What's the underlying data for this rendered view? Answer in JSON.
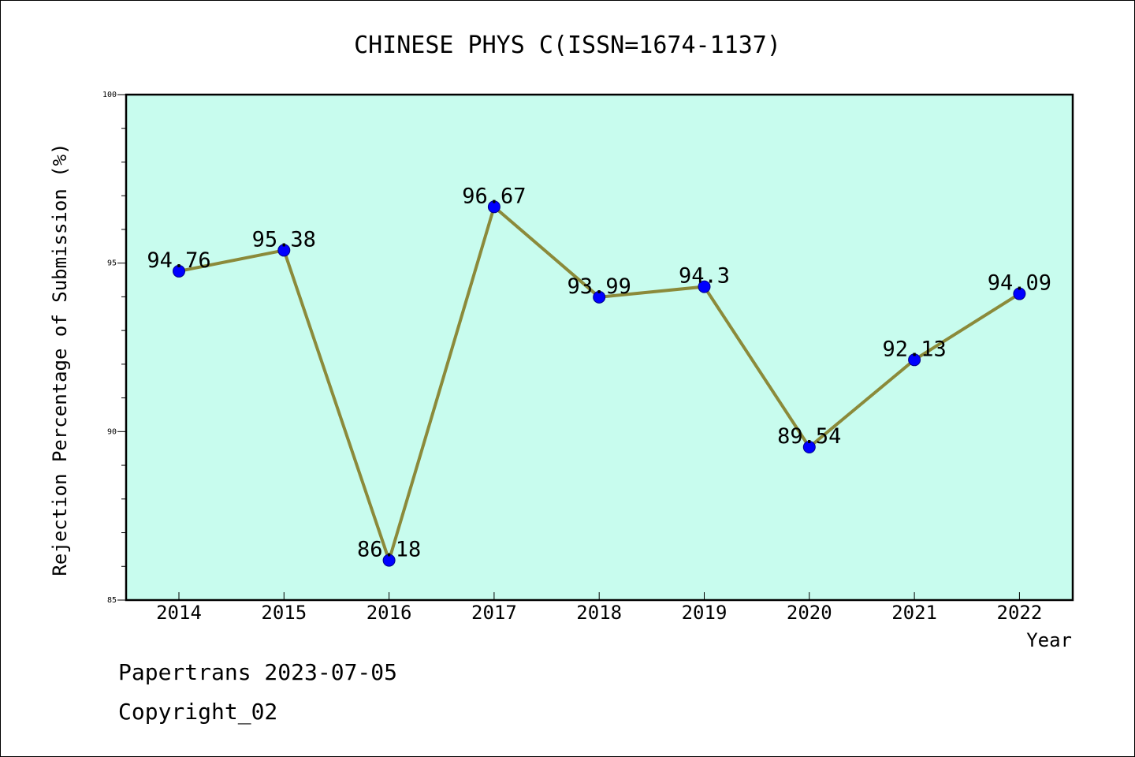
{
  "chart_data": {
    "type": "line",
    "title": "CHINESE PHYS C(ISSN=1674-1137)",
    "xlabel": "Year",
    "ylabel": "Rejection Percentage of Submission (%)",
    "categories": [
      "2014",
      "2015",
      "2016",
      "2017",
      "2018",
      "2019",
      "2020",
      "2021",
      "2022"
    ],
    "series": [
      {
        "values": [
          94.76,
          95.38,
          86.18,
          96.67,
          93.99,
          94.3,
          89.54,
          92.13,
          94.09
        ],
        "labels": [
          "94.76",
          "95.38",
          "86.18",
          "96.67",
          "93.99",
          "94.3",
          "89.54",
          "92.13",
          "94.09"
        ]
      }
    ],
    "ylim": [
      85,
      100
    ],
    "yticks": [
      "85",
      "90",
      "95",
      "100"
    ],
    "grid": false,
    "colors": {
      "plot_background": "#c8fcee",
      "line": "#8b8a3a",
      "marker": "#0000ff"
    }
  },
  "footer": {
    "line1": "Papertrans 2023-07-05",
    "line2": "Copyright_02"
  }
}
